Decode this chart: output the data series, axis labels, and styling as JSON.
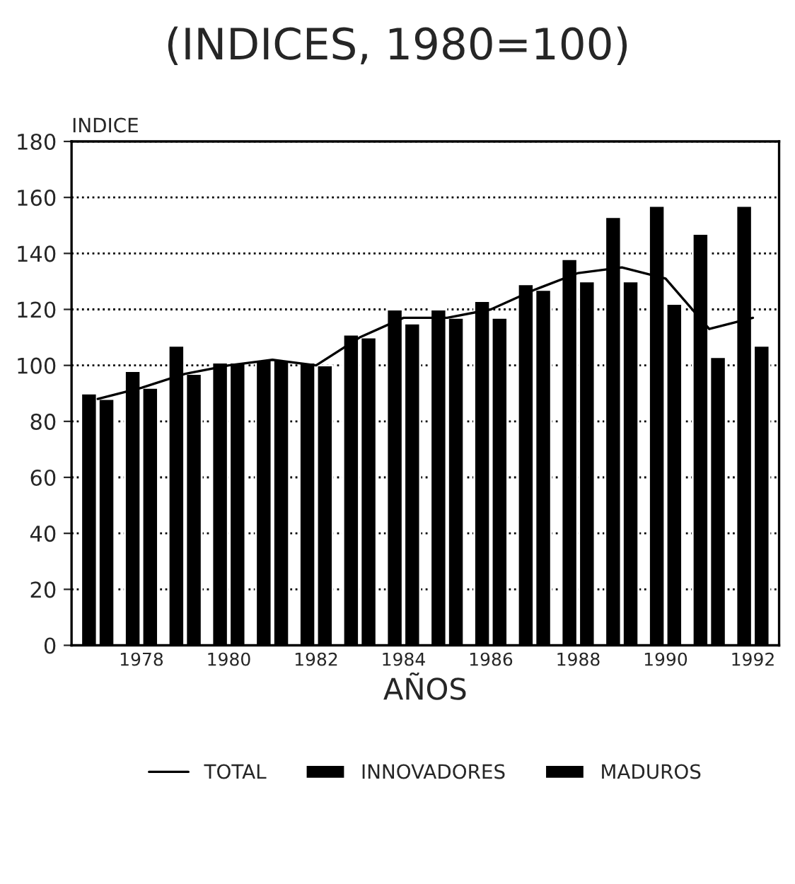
{
  "chart_data": {
    "type": "bar",
    "title": "(INDICES, 1980=100)",
    "xlabel": "AÑOS",
    "ylabel": "INDICE",
    "categories": [
      null,
      "1978",
      null,
      "1980",
      null,
      "1982",
      null,
      "1984",
      null,
      "1986",
      null,
      "1988",
      null,
      "1990",
      null,
      "1992"
    ],
    "series": [
      {
        "name": "TOTAL",
        "type": "line",
        "color": "#000000",
        "values": [
          88,
          92,
          97,
          100,
          102,
          100,
          110,
          117,
          117,
          120,
          127,
          133,
          135,
          131,
          113,
          117
        ]
      },
      {
        "name": "INNOVADORES",
        "color": "#000000",
        "values": [
          90,
          98,
          107,
          101,
          102,
          101,
          111,
          120,
          120,
          123,
          129,
          138,
          153,
          157,
          147,
          157
        ]
      },
      {
        "name": "MADUROS",
        "color": "#000000",
        "values": [
          88,
          92,
          97,
          101,
          102,
          100,
          110,
          115,
          117,
          117,
          127,
          130,
          130,
          122,
          103,
          107
        ]
      }
    ],
    "ylim": [
      0,
      180
    ],
    "yticks": [
      0,
      20,
      40,
      60,
      80,
      100,
      120,
      140,
      160,
      180
    ],
    "grid": "y",
    "legend": "bottom"
  }
}
